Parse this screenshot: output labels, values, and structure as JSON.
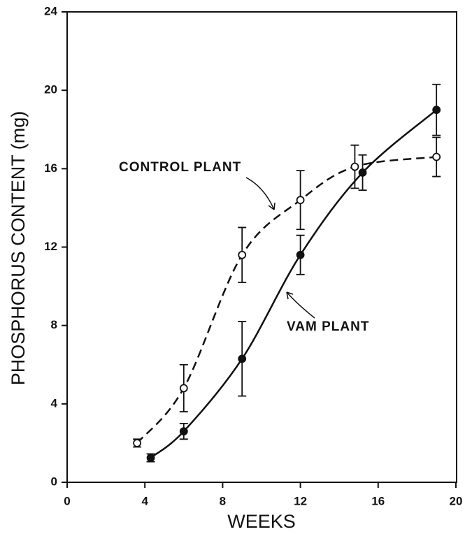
{
  "chart_data": {
    "type": "line",
    "xlabel": "WEEKS",
    "ylabel": "PHOSPHORUS CONTENT (mg)",
    "xlim": [
      0,
      20
    ],
    "xticks": [
      0,
      4,
      8,
      12,
      16,
      20
    ],
    "ylim": [
      0,
      24
    ],
    "yticks": [
      0,
      4,
      8,
      12,
      16,
      20,
      24
    ],
    "series": [
      {
        "name": "CONTROL PLANT",
        "color": "#111111",
        "line_style": "dashed",
        "marker": "open",
        "x": [
          3.6,
          6,
          9,
          12,
          14.8,
          19
        ],
        "values": [
          2.0,
          4.8,
          11.6,
          14.4,
          16.1,
          16.6
        ],
        "errors": [
          0.2,
          1.2,
          1.4,
          1.5,
          1.1,
          1.0
        ]
      },
      {
        "name": "VAM PLANT",
        "color": "#111111",
        "line_style": "solid",
        "marker": "filled",
        "x": [
          4.3,
          6,
          9,
          12,
          15.2,
          19
        ],
        "values": [
          1.25,
          2.6,
          6.3,
          11.6,
          15.8,
          19.0
        ],
        "errors": [
          0.2,
          0.4,
          1.9,
          1.0,
          0.9,
          1.3
        ]
      }
    ]
  }
}
